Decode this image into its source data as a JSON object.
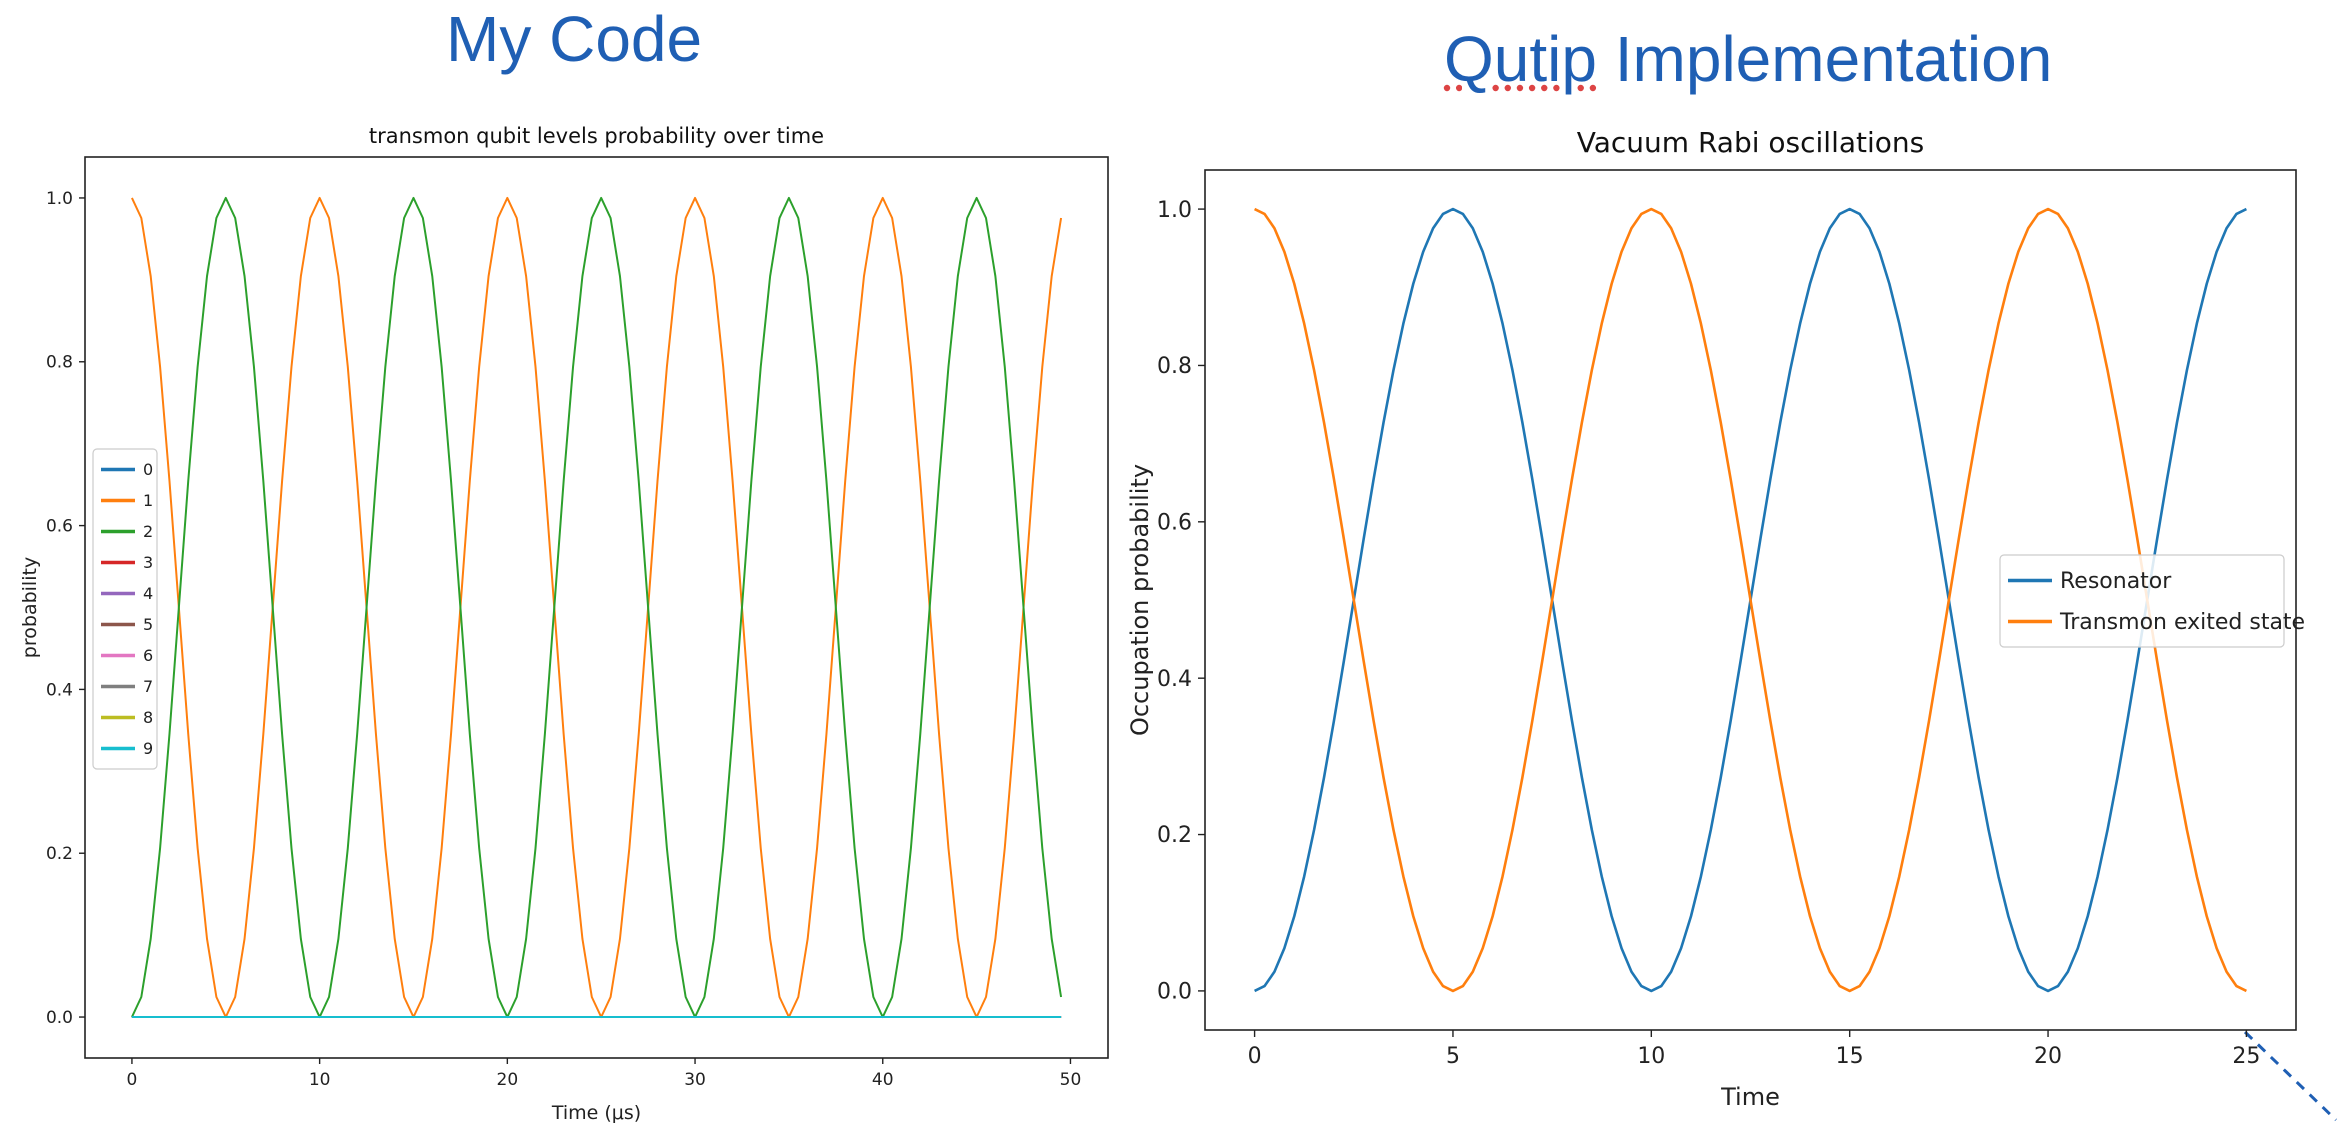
{
  "slide": {
    "left_heading": "My Code",
    "right_heading_part1": "Qutip",
    "right_heading_part2": " Implementation"
  },
  "chart_data": [
    {
      "type": "line",
      "title": "transmon qubit levels probability over time",
      "xlabel": "Time (μs)",
      "ylabel": "probability",
      "xlim": [
        -2.5,
        52
      ],
      "ylim": [
        -0.05,
        1.05
      ],
      "xticks": [
        "0",
        "10",
        "20",
        "30",
        "40",
        "50"
      ],
      "yticks": [
        "0.0",
        "0.2",
        "0.4",
        "0.6",
        "0.8",
        "1.0"
      ],
      "grid": false,
      "legend_position": "center-left",
      "x": {
        "start": 0,
        "end": 49.5,
        "step": 0.5
      },
      "series": [
        {
          "name": "0",
          "color": "#1f77b4",
          "function": "constant",
          "value": 0
        },
        {
          "name": "1",
          "color": "#ff7f0e",
          "function": "cos2",
          "period": 10
        },
        {
          "name": "2",
          "color": "#2ca02c",
          "function": "sin2",
          "period": 10
        },
        {
          "name": "3",
          "color": "#d62728",
          "function": "constant",
          "value": 0
        },
        {
          "name": "4",
          "color": "#9467bd",
          "function": "constant",
          "value": 0
        },
        {
          "name": "5",
          "color": "#8c564b",
          "function": "constant",
          "value": 0
        },
        {
          "name": "6",
          "color": "#e377c2",
          "function": "constant",
          "value": 0
        },
        {
          "name": "7",
          "color": "#7f7f7f",
          "function": "constant",
          "value": 0
        },
        {
          "name": "8",
          "color": "#bcbd22",
          "function": "constant",
          "value": 0
        },
        {
          "name": "9",
          "color": "#17becf",
          "function": "constant",
          "value": 0
        }
      ]
    },
    {
      "type": "line",
      "title": "Vacuum Rabi oscillations",
      "xlabel": "Time",
      "ylabel": "Occupation probability",
      "xlim": [
        -1.25,
        26.25
      ],
      "ylim": [
        -0.05,
        1.05
      ],
      "xticks": [
        "0",
        "5",
        "10",
        "15",
        "20",
        "25"
      ],
      "yticks": [
        "0.0",
        "0.2",
        "0.4",
        "0.6",
        "0.8",
        "1.0"
      ],
      "grid": false,
      "legend_position": "center-right",
      "x": {
        "start": 0,
        "end": 25,
        "step": 0.25
      },
      "series": [
        {
          "name": "Resonator",
          "color": "#1f77b4",
          "function": "sin2",
          "period": 10
        },
        {
          "name": "Transmon exited state",
          "color": "#ff7f0e",
          "function": "cos2",
          "period": 10
        }
      ]
    }
  ]
}
